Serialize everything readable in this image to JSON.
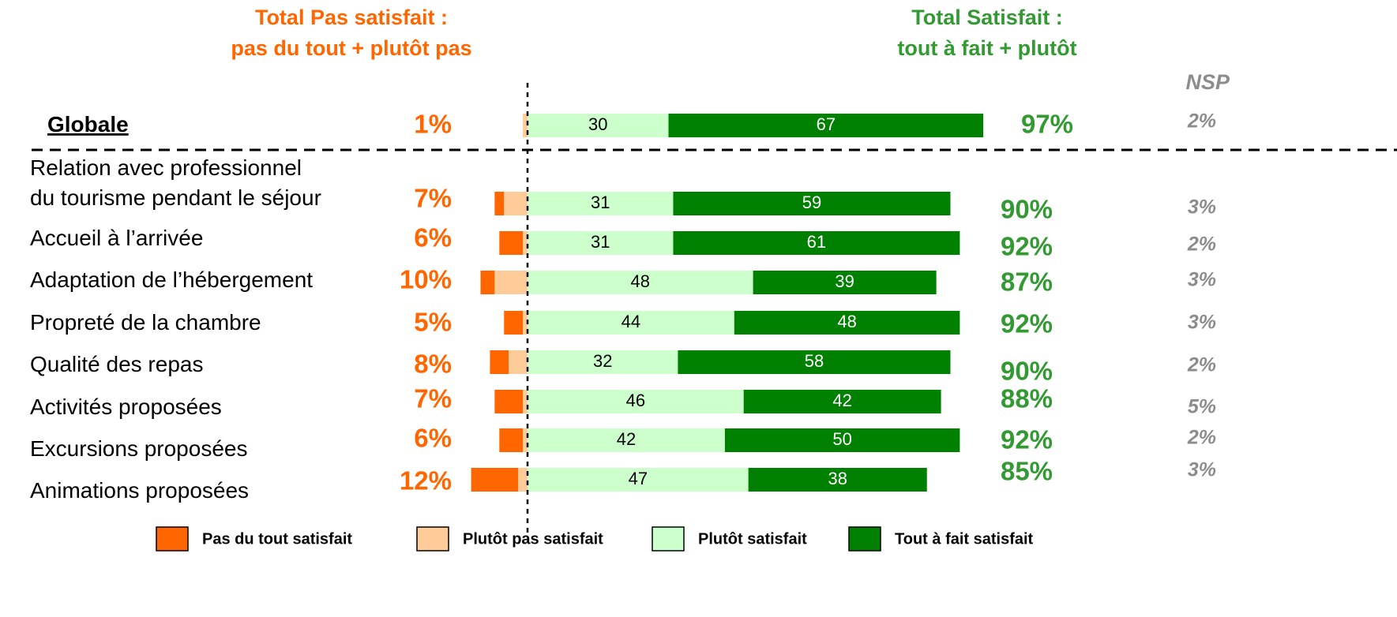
{
  "chart_data": {
    "type": "diverging_bar",
    "header_left": [
      "Total Pas satisfait :",
      "pas du tout + plutôt pas"
    ],
    "header_right": [
      "Total Satisfait :",
      "tout à fait + plutôt"
    ],
    "nsp_title": "NSP",
    "categories": [
      "Globale",
      "Relation avec professionnel\ndu tourisme pendant le séjour",
      "Accueil à l’arrivée",
      "Adaptation de l’hébergement",
      "Propreté de la chambre",
      "Qualité des repas",
      "Activités proposées",
      "Excursions proposées",
      "Animations proposées"
    ],
    "series": [
      {
        "name": "Pas du tout satisfait",
        "color": "#ff6600",
        "side": "left",
        "values": [
          0,
          2,
          5,
          3,
          4,
          4,
          6,
          5,
          10
        ]
      },
      {
        "name": "Plutôt pas satisfait",
        "color": "#ffcc99",
        "side": "left",
        "values": [
          1,
          5,
          1,
          7,
          1,
          4,
          1,
          1,
          2
        ]
      },
      {
        "name": "Plutôt satisfait",
        "color": "#ccffcc",
        "side": "right",
        "label_color": "#000000",
        "values": [
          30,
          31,
          31,
          48,
          44,
          32,
          46,
          42,
          47
        ]
      },
      {
        "name": "Tout à fait satisfait",
        "color": "#008000",
        "side": "right",
        "label_color": "#ffffff",
        "values": [
          67,
          59,
          61,
          39,
          48,
          58,
          42,
          50,
          38
        ]
      }
    ],
    "total_unsatisfied": [
      "1%",
      "7%",
      "6%",
      "10%",
      "5%",
      "8%",
      "7%",
      "6%",
      "12%"
    ],
    "total_satisfied": [
      "97%",
      "90%",
      "92%",
      "87%",
      "92%",
      "90%",
      "88%",
      "92%",
      "85%"
    ],
    "nsp": [
      "2%",
      "3%",
      "2%",
      "3%",
      "3%",
      "2%",
      "5%",
      "2%",
      "3%"
    ],
    "xlim": [
      -12,
      100
    ]
  }
}
